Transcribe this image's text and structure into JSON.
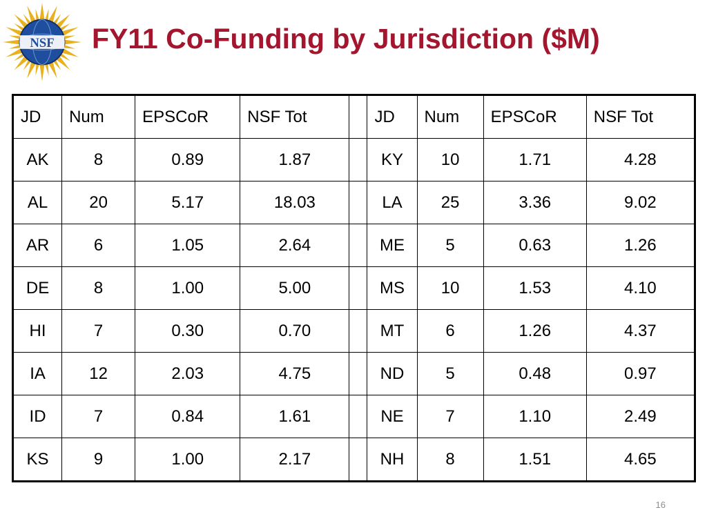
{
  "slide": {
    "title": "FY11 Co-Funding by Jurisdiction ($M)",
    "page_number": "16",
    "logo": {
      "icon": "nsf-logo",
      "text": "NSF",
      "colors": {
        "globe": "#1f4e9e",
        "globe_dark": "#0f2e6e",
        "rays": "#e8b120",
        "band": "#ffffff"
      }
    },
    "title_color": "#a3162e"
  },
  "table": {
    "headers": [
      "JD",
      "Num",
      "EPSCoR",
      "NSF Tot",
      "",
      "JD",
      "Num",
      "EPSCoR",
      "NSF Tot"
    ],
    "rows": [
      [
        "AK",
        "8",
        "0.89",
        "1.87",
        "",
        "KY",
        "10",
        "1.71",
        "4.28"
      ],
      [
        "AL",
        "20",
        "5.17",
        "18.03",
        "",
        "LA",
        "25",
        "3.36",
        "9.02"
      ],
      [
        "AR",
        "6",
        "1.05",
        "2.64",
        "",
        "ME",
        "5",
        "0.63",
        "1.26"
      ],
      [
        "DE",
        "8",
        "1.00",
        "5.00",
        "",
        "MS",
        "10",
        "1.53",
        "4.10"
      ],
      [
        "HI",
        "7",
        "0.30",
        "0.70",
        "",
        "MT",
        "6",
        "1.26",
        "4.37"
      ],
      [
        "IA",
        "12",
        "2.03",
        "4.75",
        "",
        "ND",
        "5",
        "0.48",
        "0.97"
      ],
      [
        "ID",
        "7",
        "0.84",
        "1.61",
        "",
        "NE",
        "7",
        "1.10",
        "2.49"
      ],
      [
        "KS",
        "9",
        "1.00",
        "2.17",
        "",
        "NH",
        "8",
        "1.51",
        "4.65"
      ]
    ]
  }
}
